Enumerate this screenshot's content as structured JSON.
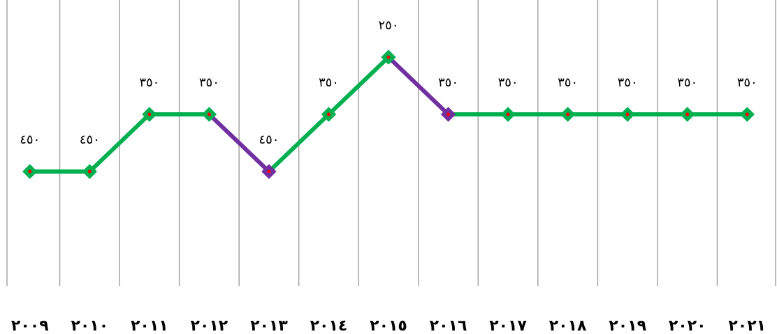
{
  "chart_data": {
    "type": "line",
    "categories": [
      "٢٠٠٩",
      "٢٠١٠",
      "٢٠١١",
      "٢٠١٢",
      "٢٠١٣",
      "٢٠١٤",
      "٢٠١٥",
      "٢٠١٦",
      "٢٠١٧",
      "٢٠١٨",
      "٢٠١٩",
      "٢٠٢٠",
      "٢٠٢١"
    ],
    "values": [
      450,
      450,
      350,
      350,
      450,
      350,
      250,
      350,
      350,
      350,
      350,
      350,
      350
    ],
    "data_labels": [
      "٤٥٠",
      "٤٥٠",
      "٣٥٠",
      "٣٥٠",
      "٤٥٠",
      "٣٥٠",
      "٢٥٠",
      "٣٥٠",
      "٣٥٠",
      "٣٥٠",
      "٣٥٠",
      "٣٥٠",
      "٣٥٠"
    ],
    "y_axis_inverted": true,
    "ylim": [
      150,
      650
    ],
    "grid": "vertical",
    "legend": "none",
    "colors": {
      "rising": "#00b050",
      "falling": "#7030a0",
      "marker_center": "#ff0000",
      "gridline": "#a6a6a6"
    }
  }
}
